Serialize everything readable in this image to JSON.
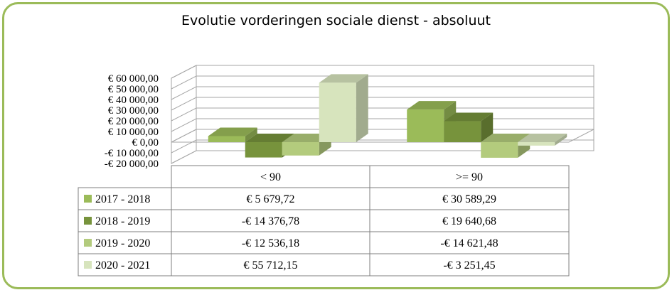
{
  "chart_data": {
    "type": "bar",
    "title": "Evolutie vorderingen sociale dienst - absoluut",
    "categories": [
      "< 90",
      ">= 90"
    ],
    "ylim": [
      -20000,
      60000
    ],
    "yticks": [
      {
        "value": 60000,
        "label": "€ 60 000,00"
      },
      {
        "value": 50000,
        "label": "€ 50 000,00"
      },
      {
        "value": 40000,
        "label": "€ 40 000,00"
      },
      {
        "value": 30000,
        "label": "€ 30 000,00"
      },
      {
        "value": 20000,
        "label": "€ 20 000,00"
      },
      {
        "value": 10000,
        "label": "€ 10 000,00"
      },
      {
        "value": 0,
        "label": "€  0,00"
      },
      {
        "value": -10000,
        "label": "-€ 10 000,00"
      },
      {
        "value": -20000,
        "label": "-€ 20 000,00"
      }
    ],
    "series": [
      {
        "name": "2017 - 2018",
        "color": "#9bbb59",
        "values": [
          5679.72,
          30589.29
        ],
        "labels": [
          "€ 5 679,72",
          "€ 30 589,29"
        ]
      },
      {
        "name": "2018 - 2019",
        "color": "#77933c",
        "values": [
          -14376.78,
          19640.68
        ],
        "labels": [
          "-€ 14 376,78",
          "€ 19 640,68"
        ]
      },
      {
        "name": "2019 - 2020",
        "color": "#b3cb7d",
        "values": [
          -12536.18,
          -14621.48
        ],
        "labels": [
          "-€ 12 536,18",
          "-€ 14 621,48"
        ]
      },
      {
        "name": "2020 - 2021",
        "color": "#d7e4bd",
        "values": [
          55712.15,
          -3251.45
        ],
        "labels": [
          "€ 55 712,15",
          "-€ 3 251,45"
        ]
      }
    ],
    "grid": true,
    "legend": "data-table"
  }
}
